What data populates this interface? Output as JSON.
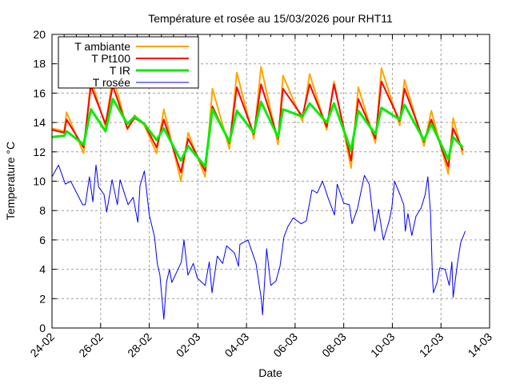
{
  "chart_data": {
    "type": "line",
    "title": "Température et rosée au 15/03/2026 pour RHT11",
    "xlabel": "Date",
    "ylabel": "Temperature °C",
    "ylim": [
      0,
      20
    ],
    "yticks": [
      0,
      2,
      4,
      6,
      8,
      10,
      12,
      14,
      16,
      18,
      20
    ],
    "xlim_days": [
      0,
      18
    ],
    "xticks": [
      {
        "day": 0,
        "label": "24-02"
      },
      {
        "day": 2,
        "label": "26-02"
      },
      {
        "day": 4,
        "label": "28-02"
      },
      {
        "day": 6,
        "label": "02-03"
      },
      {
        "day": 8,
        "label": "04-03"
      },
      {
        "day": 10,
        "label": "06-03"
      },
      {
        "day": 12,
        "label": "08-03"
      },
      {
        "day": 14,
        "label": "10-03"
      },
      {
        "day": 16,
        "label": "12-03"
      },
      {
        "day": 18,
        "label": "14-03"
      }
    ],
    "grid": true,
    "legend_position": "top-left",
    "series": [
      {
        "name": "T ambiante",
        "color": "#ffa500",
        "width": 2,
        "x": [
          0,
          0.5,
          0.6,
          1.3,
          1.6,
          2.2,
          2.5,
          3.1,
          3.4,
          3.8,
          4.3,
          4.6,
          5.3,
          5.6,
          6.3,
          6.6,
          7.3,
          7.6,
          8.3,
          8.6,
          9.3,
          9.5,
          10.3,
          10.6,
          11.3,
          11.6,
          12.3,
          12.6,
          13.3,
          13.55,
          14.3,
          14.5,
          15.3,
          15.6,
          16.3,
          16.5,
          16.9
        ],
        "y": [
          13.6,
          13.4,
          14.7,
          11.9,
          17.0,
          13.7,
          17.2,
          13.5,
          14.5,
          13.8,
          11.9,
          14.9,
          10.0,
          13.3,
          10.3,
          16.3,
          12.2,
          17.4,
          12.9,
          17.8,
          12.5,
          17.2,
          14.1,
          17.3,
          13.5,
          16.8,
          10.9,
          16.4,
          12.6,
          17.7,
          13.8,
          16.9,
          12.4,
          14.8,
          10.5,
          14.3,
          11.8
        ]
      },
      {
        "name": "T Pt100",
        "color": "#ff0000",
        "width": 2,
        "x": [
          0,
          0.5,
          0.6,
          1.3,
          1.6,
          2.2,
          2.5,
          3.1,
          3.4,
          3.8,
          4.3,
          4.6,
          5.3,
          5.6,
          6.3,
          6.6,
          7.3,
          7.6,
          8.3,
          8.6,
          9.3,
          9.5,
          10.3,
          10.6,
          11.3,
          11.6,
          12.3,
          12.6,
          13.3,
          13.55,
          14.3,
          14.5,
          15.3,
          15.6,
          16.3,
          16.5,
          16.9
        ],
        "y": [
          13.5,
          13.3,
          14.2,
          12.3,
          16.5,
          13.9,
          16.5,
          13.6,
          14.3,
          13.9,
          12.3,
          14.2,
          10.6,
          12.9,
          10.7,
          15.1,
          12.6,
          16.4,
          13.2,
          16.6,
          12.9,
          16.3,
          14.4,
          16.6,
          13.7,
          16.6,
          11.4,
          15.6,
          12.9,
          16.8,
          14.1,
          16.3,
          12.7,
          14.2,
          11.0,
          13.6,
          12.1
        ]
      },
      {
        "name": "T IR",
        "color": "#00ee00",
        "width": 3,
        "x": [
          0,
          0.5,
          0.6,
          1.3,
          1.6,
          2.2,
          2.5,
          3.1,
          3.4,
          3.8,
          4.3,
          4.6,
          5.3,
          5.6,
          6.3,
          6.6,
          7.3,
          7.6,
          8.3,
          8.6,
          9.3,
          9.5,
          10.3,
          10.6,
          11.3,
          11.6,
          12.3,
          12.6,
          13.3,
          13.55,
          14.3,
          14.5,
          15.3,
          15.6,
          16.3,
          16.5,
          16.9
        ],
        "y": [
          13.0,
          13.1,
          13.4,
          12.5,
          14.9,
          13.4,
          15.6,
          13.9,
          14.4,
          13.9,
          12.8,
          13.6,
          11.4,
          12.4,
          11.0,
          14.9,
          12.7,
          14.8,
          13.3,
          15.4,
          13.0,
          14.9,
          14.4,
          15.3,
          14.0,
          15.3,
          12.1,
          14.8,
          13.2,
          15.0,
          14.2,
          15.2,
          12.8,
          13.9,
          11.5,
          13.0,
          12.3
        ]
      },
      {
        "name": "T rosée",
        "color": "#0000ff",
        "width": 1,
        "x": [
          0,
          0.27,
          0.55,
          0.77,
          1.26,
          1.37,
          1.54,
          1.68,
          1.81,
          1.92,
          2.14,
          2.25,
          2.47,
          2.69,
          2.8,
          3.13,
          3.34,
          3.53,
          3.62,
          3.8,
          4.0,
          4.22,
          4.33,
          4.44,
          4.6,
          4.71,
          4.83,
          4.93,
          5.21,
          5.32,
          5.43,
          5.59,
          5.81,
          5.98,
          6.3,
          6.47,
          6.58,
          6.8,
          7.02,
          7.18,
          7.51,
          7.67,
          7.73,
          8.06,
          8.39,
          8.61,
          8.66,
          8.83,
          9.0,
          9.21,
          9.38,
          9.54,
          9.7,
          9.92,
          10.25,
          10.46,
          10.69,
          10.91,
          11.13,
          11.35,
          11.62,
          11.73,
          12.0,
          12.23,
          12.34,
          12.56,
          12.85,
          13.05,
          13.27,
          13.43,
          13.63,
          13.87,
          13.98,
          14.09,
          14.31,
          14.47,
          14.53,
          14.64,
          14.8,
          14.97,
          15.19,
          15.35,
          15.46,
          15.57,
          15.65,
          15.69,
          15.84,
          15.95,
          16.17,
          16.34,
          16.45,
          16.5,
          16.67,
          16.81,
          17.0
        ],
        "y": [
          10.3,
          11.1,
          9.8,
          10.0,
          8.4,
          8.4,
          10.3,
          8.6,
          11.1,
          9.6,
          9.1,
          7.9,
          10.1,
          8.4,
          10.1,
          8.4,
          8.9,
          7.2,
          9.7,
          10.7,
          7.7,
          6.2,
          4.4,
          3.6,
          0.6,
          3.1,
          4.0,
          3.1,
          4.1,
          4.5,
          6.0,
          3.6,
          4.4,
          3.4,
          2.9,
          4.5,
          2.4,
          4.9,
          4.4,
          5.6,
          5.1,
          4.2,
          5.7,
          6.0,
          4.4,
          2.0,
          0.9,
          5.4,
          2.9,
          3.2,
          4.2,
          6.2,
          6.9,
          7.5,
          7.1,
          7.3,
          9.4,
          9.2,
          10.0,
          8.9,
          7.7,
          9.8,
          8.5,
          8.4,
          7.1,
          8.1,
          10.4,
          9.8,
          6.6,
          8.1,
          6.0,
          7.3,
          8.2,
          10.0,
          9.1,
          8.4,
          6.6,
          7.8,
          6.3,
          7.6,
          8.2,
          9.1,
          10.3,
          7.8,
          3.4,
          2.4,
          3.1,
          4.1,
          4.0,
          2.9,
          4.5,
          2.1,
          4.3,
          5.8,
          6.6
        ]
      }
    ]
  }
}
